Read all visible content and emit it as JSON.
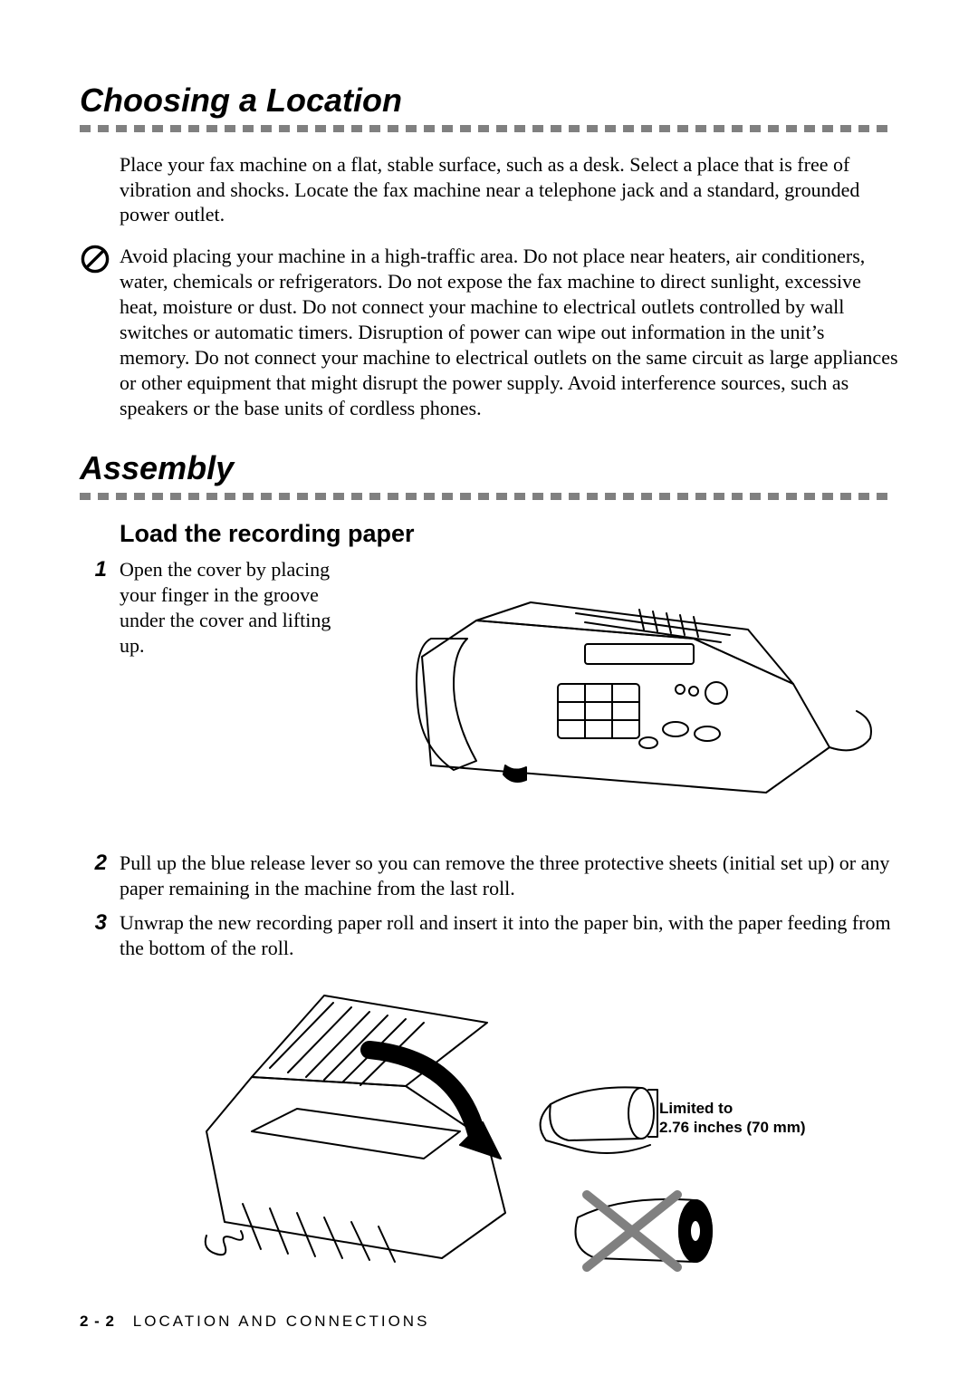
{
  "sections": {
    "choosing": {
      "title": "Choosing a Location",
      "intro": "Place your fax machine on a flat, stable surface, such as a desk. Select a place that is free of vibration and shocks. Locate the fax machine near a telephone jack and a standard, grounded power outlet.",
      "caution": "Avoid placing your machine in a high-traffic area. Do not place near heaters, air conditioners, water, chemicals or refrigerators. Do not expose the fax machine to direct sunlight, excessive heat, moisture or dust. Do not connect your machine to electrical outlets controlled by wall switches or automatic timers. Disruption of power can wipe out information in the unit’s memory. Do not connect your machine to electrical outlets on the same circuit as large appliances or other equipment that might disrupt the power supply. Avoid interference sources, such as speakers or the base units of cordless phones."
    },
    "assembly": {
      "title": "Assembly",
      "subheading": "Load the recording paper",
      "steps": [
        {
          "num": "1",
          "text": "Open the cover by placing your finger in the groove under the cover and lifting up."
        },
        {
          "num": "2",
          "text": "Pull up the blue release lever so you can remove the three protective sheets (initial set up) or any paper remaining in the machine from the last roll."
        },
        {
          "num": "3",
          "text": "Unwrap the new recording paper roll and insert it into the paper bin, with the paper feeding from the bottom of the roll."
        }
      ],
      "limit_label_line1": "Limited to",
      "limit_label_line2": "2.76 inches (70 mm)"
    }
  },
  "footer": {
    "page_ref": "2 - 2",
    "chapter": "LOCATION AND CONNECTIONS"
  },
  "style": {
    "dash_color": "#808080",
    "dash_count": 45
  }
}
